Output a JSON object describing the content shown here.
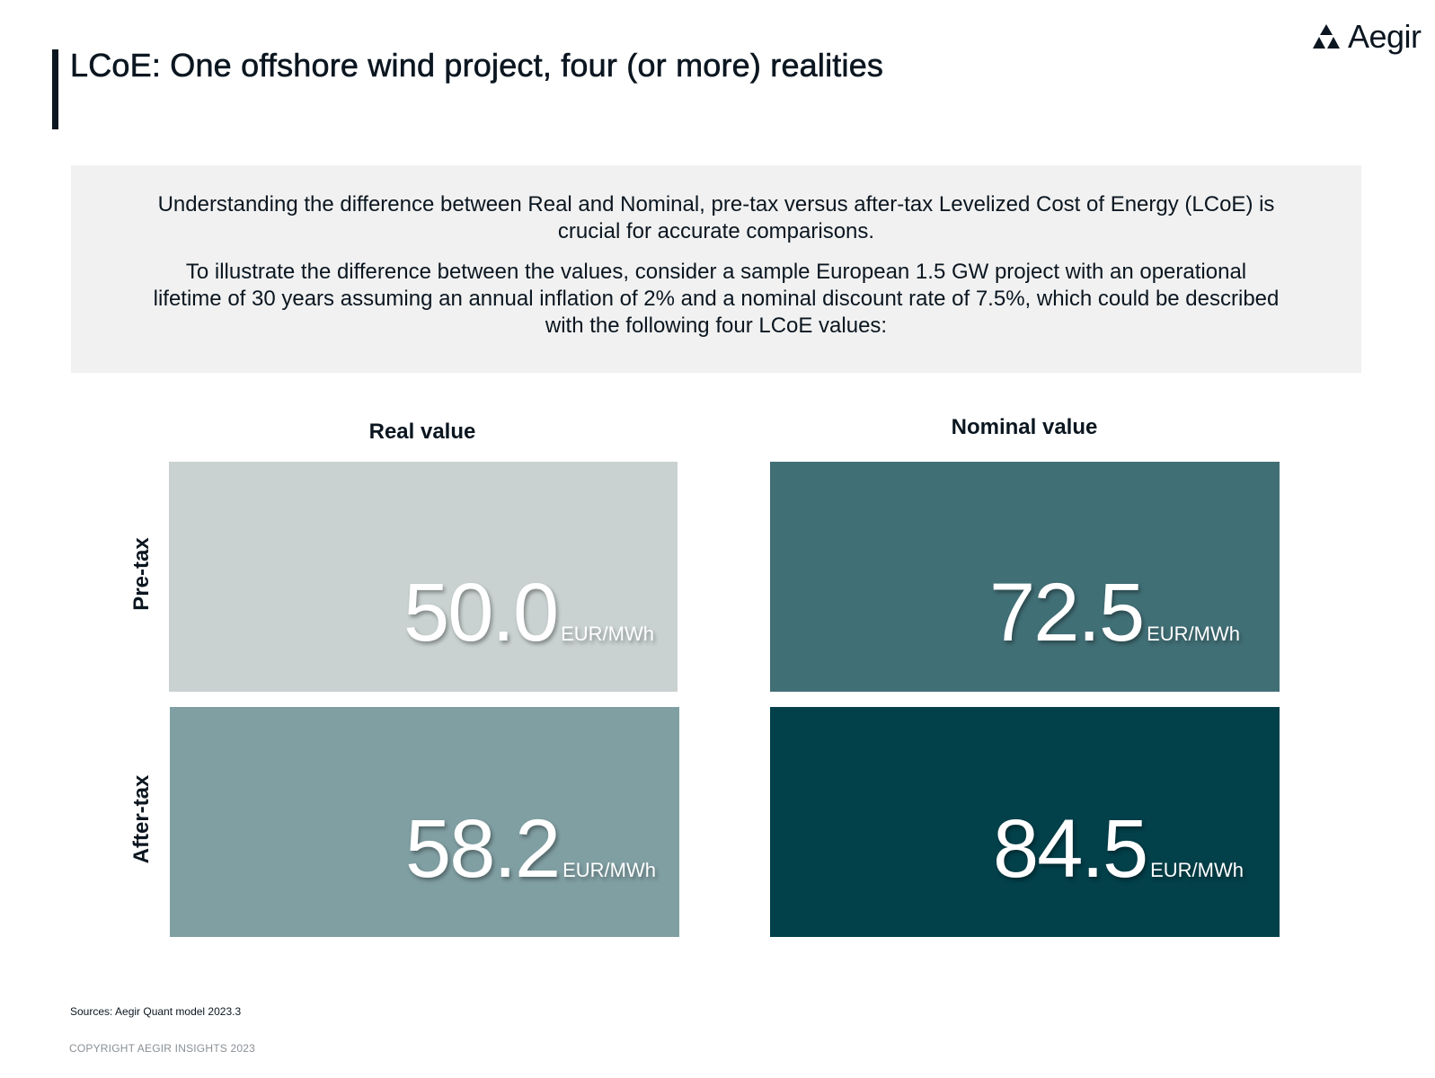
{
  "header": {
    "title": "LCoE: One offshore wind project, four (or more) realities",
    "logo_text": "Aegir",
    "logo_icon": "aegir-triangles-icon"
  },
  "intro": {
    "paragraph_1": "Understanding the difference between Real and Nominal, pre-tax versus after-tax Levelized Cost of Energy (LCoE) is crucial for accurate comparisons.",
    "paragraph_2": "To illustrate the difference between the values, consider a sample European 1.5 GW project with an operational lifetime of 30 years assuming an annual inflation of 2% and a nominal discount rate of 7.5%, which could be described with the following four LCoE values:"
  },
  "matrix": {
    "columns": [
      "Real value",
      "Nominal value"
    ],
    "rows": [
      "Pre-tax",
      "After-tax"
    ],
    "unit": "EUR/MWh",
    "cells": [
      {
        "value": "50.0",
        "color": "#c9d2d1"
      },
      {
        "value": "72.5",
        "color": "#416f76"
      },
      {
        "value": "58.2",
        "color": "#809fa3"
      },
      {
        "value": "84.5",
        "color": "#02404a"
      }
    ]
  },
  "footer": {
    "sources": "Sources: Aegir Quant model 2023.3",
    "copyright": "COPYRIGHT AEGIR INSIGHTS 2023"
  }
}
